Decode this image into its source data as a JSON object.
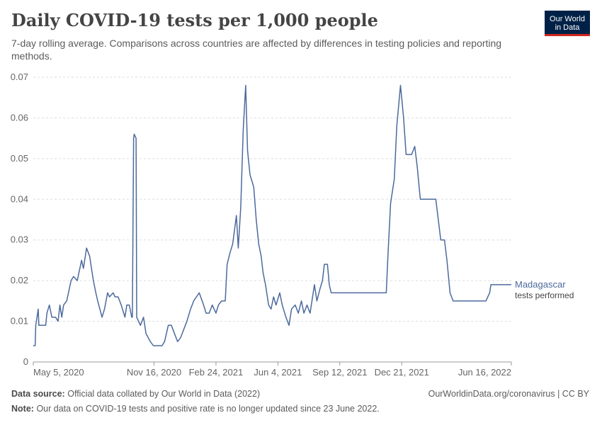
{
  "header": {
    "title": "Daily COVID-19 tests per 1,000 people",
    "subtitle": "7-day rolling average. Comparisons across countries are affected by differences in testing policies and reporting methods."
  },
  "logo": {
    "line1": "Our World",
    "line2": "in Data",
    "bg_color": "#002147",
    "accent_color": "#ce261e"
  },
  "footer": {
    "source_label": "Data source:",
    "source_text": "Official data collated by Our World in Data (2022)",
    "link": "OurWorldinData.org/coronavirus | CC BY",
    "note_label": "Note:",
    "note_text": "Our data on COVID-19 tests and positive rate is no longer updated since 23 June 2022."
  },
  "chart_data": {
    "type": "line",
    "title": "Daily COVID-19 tests per 1,000 people",
    "subtitle": "7-day rolling average. Comparisons across countries are affected by differences in testing policies and reporting methods.",
    "ylim": [
      0,
      0.07
    ],
    "y_ticks": [
      "0",
      "0.01",
      "0.02",
      "0.03",
      "0.04",
      "0.05",
      "0.06",
      "0.07"
    ],
    "xlim": [
      "2020-05-05",
      "2022-06-16"
    ],
    "x_ticks": [
      {
        "date": "2020-05-05",
        "label": "May 5, 2020"
      },
      {
        "date": "2020-11-16",
        "label": "Nov 16, 2020"
      },
      {
        "date": "2021-02-24",
        "label": "Feb 24, 2021"
      },
      {
        "date": "2021-06-04",
        "label": "Jun 4, 2021"
      },
      {
        "date": "2021-09-12",
        "label": "Sep 12, 2021"
      },
      {
        "date": "2021-12-21",
        "label": "Dec 21, 2021"
      },
      {
        "date": "2022-06-16",
        "label": "Jun 16, 2022"
      }
    ],
    "grid": "horizontal dashed",
    "line_color": "#4c6a9c",
    "series": [
      {
        "name": "Madagascar",
        "label_sub": "tests performed",
        "points": [
          [
            "2020-05-05",
            0.004
          ],
          [
            "2020-05-08",
            0.004
          ],
          [
            "2020-05-09",
            0.009
          ],
          [
            "2020-05-13",
            0.013
          ],
          [
            "2020-05-14",
            0.009
          ],
          [
            "2020-05-25",
            0.009
          ],
          [
            "2020-05-27",
            0.012
          ],
          [
            "2020-05-31",
            0.014
          ],
          [
            "2020-06-04",
            0.011
          ],
          [
            "2020-06-10",
            0.011
          ],
          [
            "2020-06-14",
            0.01
          ],
          [
            "2020-06-17",
            0.014
          ],
          [
            "2020-06-20",
            0.011
          ],
          [
            "2020-06-23",
            0.014
          ],
          [
            "2020-06-28",
            0.015
          ],
          [
            "2020-07-05",
            0.02
          ],
          [
            "2020-07-09",
            0.021
          ],
          [
            "2020-07-15",
            0.02
          ],
          [
            "2020-07-22",
            0.025
          ],
          [
            "2020-07-25",
            0.023
          ],
          [
            "2020-07-30",
            0.028
          ],
          [
            "2020-08-04",
            0.026
          ],
          [
            "2020-08-10",
            0.02
          ],
          [
            "2020-08-14",
            0.017
          ],
          [
            "2020-08-17",
            0.015
          ],
          [
            "2020-08-24",
            0.011
          ],
          [
            "2020-08-28",
            0.013
          ],
          [
            "2020-09-02",
            0.017
          ],
          [
            "2020-09-05",
            0.016
          ],
          [
            "2020-09-11",
            0.017
          ],
          [
            "2020-09-14",
            0.016
          ],
          [
            "2020-09-19",
            0.016
          ],
          [
            "2020-09-24",
            0.014
          ],
          [
            "2020-09-30",
            0.011
          ],
          [
            "2020-10-03",
            0.014
          ],
          [
            "2020-10-07",
            0.014
          ],
          [
            "2020-10-11",
            0.011
          ],
          [
            "2020-10-12",
            0.011
          ],
          [
            "2020-10-14",
            0.055
          ],
          [
            "2020-10-15",
            0.056
          ],
          [
            "2020-10-18",
            0.055
          ],
          [
            "2020-10-19",
            0.011
          ],
          [
            "2020-10-25",
            0.009
          ],
          [
            "2020-10-30",
            0.011
          ],
          [
            "2020-11-03",
            0.007
          ],
          [
            "2020-11-10",
            0.005
          ],
          [
            "2020-11-15",
            0.004
          ],
          [
            "2020-11-29",
            0.004
          ],
          [
            "2020-12-03",
            0.005
          ],
          [
            "2020-12-09",
            0.009
          ],
          [
            "2020-12-14",
            0.009
          ],
          [
            "2020-12-19",
            0.007
          ],
          [
            "2020-12-24",
            0.005
          ],
          [
            "2020-12-29",
            0.006
          ],
          [
            "2021-01-08",
            0.01
          ],
          [
            "2021-01-14",
            0.013
          ],
          [
            "2021-01-19",
            0.015
          ],
          [
            "2021-01-28",
            0.017
          ],
          [
            "2021-02-04",
            0.014
          ],
          [
            "2021-02-08",
            0.012
          ],
          [
            "2021-02-13",
            0.012
          ],
          [
            "2021-02-18",
            0.014
          ],
          [
            "2021-02-24",
            0.012
          ],
          [
            "2021-02-28",
            0.014
          ],
          [
            "2021-03-05",
            0.015
          ],
          [
            "2021-03-11",
            0.015
          ],
          [
            "2021-03-14",
            0.024
          ],
          [
            "2021-03-19",
            0.027
          ],
          [
            "2021-03-23",
            0.029
          ],
          [
            "2021-03-29",
            0.036
          ],
          [
            "2021-04-01",
            0.028
          ],
          [
            "2021-04-05",
            0.038
          ],
          [
            "2021-04-09",
            0.057
          ],
          [
            "2021-04-13",
            0.068
          ],
          [
            "2021-04-16",
            0.052
          ],
          [
            "2021-04-20",
            0.046
          ],
          [
            "2021-04-26",
            0.043
          ],
          [
            "2021-04-30",
            0.035
          ],
          [
            "2021-05-04",
            0.029
          ],
          [
            "2021-05-08",
            0.026
          ],
          [
            "2021-05-11",
            0.022
          ],
          [
            "2021-05-15",
            0.019
          ],
          [
            "2021-05-20",
            0.014
          ],
          [
            "2021-05-24",
            0.013
          ],
          [
            "2021-05-28",
            0.016
          ],
          [
            "2021-06-01",
            0.014
          ],
          [
            "2021-06-07",
            0.017
          ],
          [
            "2021-06-11",
            0.014
          ],
          [
            "2021-06-17",
            0.011
          ],
          [
            "2021-06-22",
            0.009
          ],
          [
            "2021-06-26",
            0.013
          ],
          [
            "2021-07-02",
            0.014
          ],
          [
            "2021-07-07",
            0.012
          ],
          [
            "2021-07-12",
            0.015
          ],
          [
            "2021-07-16",
            0.012
          ],
          [
            "2021-07-21",
            0.014
          ],
          [
            "2021-07-26",
            0.012
          ],
          [
            "2021-08-02",
            0.019
          ],
          [
            "2021-08-06",
            0.015
          ],
          [
            "2021-08-11",
            0.018
          ],
          [
            "2021-08-15",
            0.02
          ],
          [
            "2021-08-18",
            0.024
          ],
          [
            "2021-08-23",
            0.024
          ],
          [
            "2021-08-26",
            0.019
          ],
          [
            "2021-08-29",
            0.017
          ],
          [
            "2021-11-26",
            0.017
          ],
          [
            "2021-11-29",
            0.027
          ],
          [
            "2021-12-03",
            0.039
          ],
          [
            "2021-12-09",
            0.045
          ],
          [
            "2021-12-13",
            0.058
          ],
          [
            "2021-12-19",
            0.068
          ],
          [
            "2021-12-24",
            0.06
          ],
          [
            "2021-12-28",
            0.051
          ],
          [
            "2022-01-06",
            0.051
          ],
          [
            "2022-01-11",
            0.053
          ],
          [
            "2022-01-15",
            0.048
          ],
          [
            "2022-01-20",
            0.04
          ],
          [
            "2022-02-14",
            0.04
          ],
          [
            "2022-02-22",
            0.03
          ],
          [
            "2022-02-28",
            0.03
          ],
          [
            "2022-03-04",
            0.025
          ],
          [
            "2022-03-09",
            0.017
          ],
          [
            "2022-03-14",
            0.015
          ],
          [
            "2022-05-06",
            0.015
          ],
          [
            "2022-05-12",
            0.017
          ],
          [
            "2022-05-14",
            0.019
          ],
          [
            "2022-06-16",
            0.019
          ]
        ]
      }
    ]
  }
}
